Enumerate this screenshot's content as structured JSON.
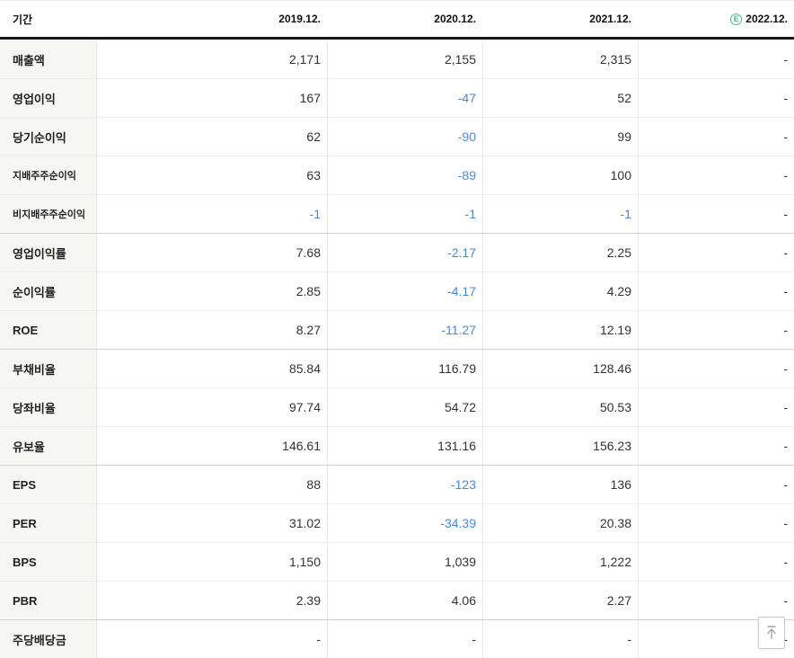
{
  "header": {
    "period_label": "기간",
    "columns": [
      {
        "label": "2019.12.",
        "estimate": false
      },
      {
        "label": "2020.12.",
        "estimate": false
      },
      {
        "label": "2021.12.",
        "estimate": false
      },
      {
        "label": "2022.12.",
        "estimate": true
      }
    ],
    "estimate_icon_letter": "E"
  },
  "rows": [
    {
      "label": "매출액",
      "values": [
        "2,171",
        "2,155",
        "2,315",
        "-"
      ]
    },
    {
      "label": "영업이익",
      "values": [
        "167",
        "-47",
        "52",
        "-"
      ]
    },
    {
      "label": "당기순이익",
      "values": [
        "62",
        "-90",
        "99",
        "-"
      ]
    },
    {
      "label": "지배주주순이익",
      "values": [
        "63",
        "-89",
        "100",
        "-"
      ]
    },
    {
      "label": "비지배주주순이익",
      "values": [
        "-1",
        "-1",
        "-1",
        "-"
      ]
    },
    {
      "label": "영업이익률",
      "values": [
        "7.68",
        "-2.17",
        "2.25",
        "-"
      ],
      "group_start": true
    },
    {
      "label": "순이익률",
      "values": [
        "2.85",
        "-4.17",
        "4.29",
        "-"
      ]
    },
    {
      "label": "ROE",
      "values": [
        "8.27",
        "-11.27",
        "12.19",
        "-"
      ]
    },
    {
      "label": "부채비율",
      "values": [
        "85.84",
        "116.79",
        "128.46",
        "-"
      ],
      "group_start": true
    },
    {
      "label": "당좌비율",
      "values": [
        "97.74",
        "54.72",
        "50.53",
        "-"
      ]
    },
    {
      "label": "유보율",
      "values": [
        "146.61",
        "131.16",
        "156.23",
        "-"
      ]
    },
    {
      "label": "EPS",
      "values": [
        "88",
        "-123",
        "136",
        "-"
      ],
      "group_start": true
    },
    {
      "label": "PER",
      "values": [
        "31.02",
        "-34.39",
        "20.38",
        "-"
      ]
    },
    {
      "label": "BPS",
      "values": [
        "1,150",
        "1,039",
        "1,222",
        "-"
      ]
    },
    {
      "label": "PBR",
      "values": [
        "2.39",
        "4.06",
        "2.27",
        "-"
      ]
    },
    {
      "label": "주당배당금",
      "values": [
        "-",
        "-",
        "-",
        "-"
      ],
      "group_start": true
    }
  ],
  "colors": {
    "negative_value": "#4a86d9",
    "estimate_green": "#3dbd8d",
    "label_column_bg": "#f6f6f3",
    "header_border": "#161616"
  },
  "scroll_top_button": {
    "icon": "scroll-to-top-arrow"
  }
}
